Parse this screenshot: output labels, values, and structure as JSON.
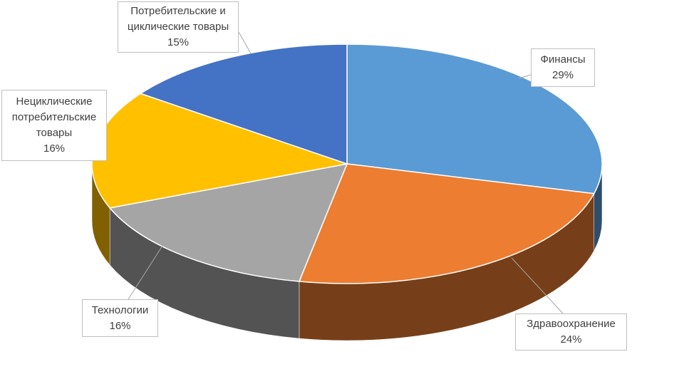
{
  "chart_data": {
    "type": "pie3d",
    "categories": [
      "Финансы",
      "Здравоохранение",
      "Технологии",
      "Нециклические потребительские товары",
      "Потребительские и циклические товары"
    ],
    "values": [
      29,
      24,
      16,
      16,
      15
    ],
    "value_labels": [
      "29%",
      "24%",
      "16%",
      "16%",
      "15%"
    ],
    "colors": [
      "#5b9bd5",
      "#ed7d31",
      "#a5a5a5",
      "#ffc000",
      "#4472c4"
    ]
  }
}
